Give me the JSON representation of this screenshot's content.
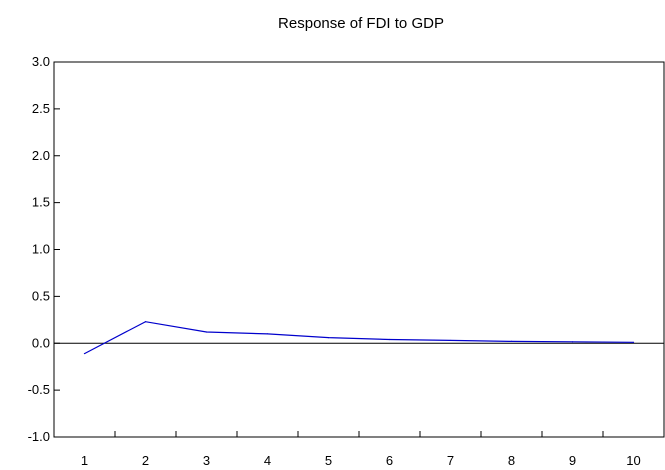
{
  "chart_data": {
    "type": "line",
    "title": "Response of FDI to GDP",
    "xlabel": "",
    "ylabel": "",
    "categories": [
      "1",
      "2",
      "3",
      "4",
      "5",
      "6",
      "7",
      "8",
      "9",
      "10"
    ],
    "x": [
      1,
      2,
      3,
      4,
      5,
      6,
      7,
      8,
      9,
      10
    ],
    "series": [
      {
        "values": [
          -0.11,
          0.23,
          0.12,
          0.1,
          0.06,
          0.04,
          0.03,
          0.02,
          0.015,
          0.01
        ],
        "color": "#0000cc"
      }
    ],
    "ylim": [
      -1.0,
      3.0
    ],
    "yticks": [
      "-1.0",
      "-0.5",
      "0.0",
      "0.5",
      "1.0",
      "1.5",
      "2.0",
      "2.5",
      "3.0"
    ],
    "zero_line": true,
    "grid": false,
    "legend": "none"
  }
}
